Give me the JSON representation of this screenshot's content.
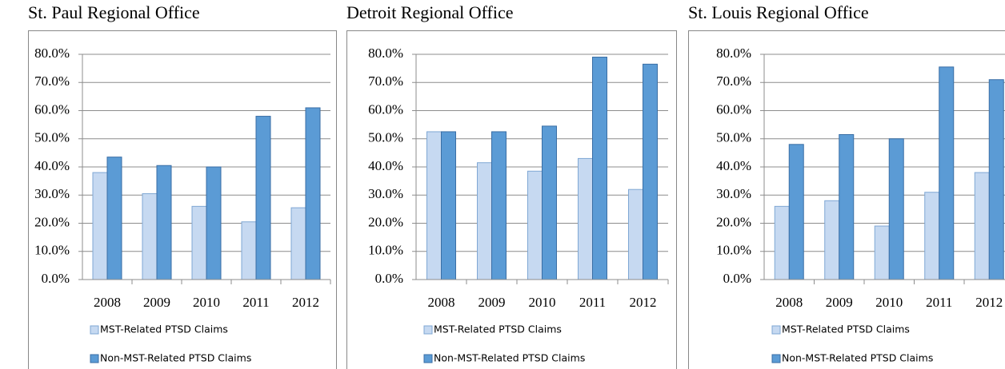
{
  "chart_data": [
    {
      "type": "bar",
      "title": "St. Paul Regional Office",
      "categories": [
        "2008",
        "2009",
        "2010",
        "2011",
        "2012"
      ],
      "series": [
        {
          "name": "MST-Related PTSD Claims",
          "color": "#c6d9f1",
          "values": [
            38,
            30.5,
            26,
            20.5,
            25.5
          ]
        },
        {
          "name": "Non-MST-Related PTSD Claims",
          "color": "#5b9bd5",
          "values": [
            43.5,
            40.5,
            40,
            58,
            61
          ]
        }
      ],
      "ylim": [
        0,
        80
      ],
      "yticks": [
        {
          "value": 0,
          "label": "0.0%"
        },
        {
          "value": 10,
          "label": "10.0%"
        },
        {
          "value": 20,
          "label": "20.0%"
        },
        {
          "value": 30,
          "label": "30.0%"
        },
        {
          "value": 40,
          "label": "40.0%"
        },
        {
          "value": 50,
          "label": "50.0%"
        },
        {
          "value": 60,
          "label": "60.0%"
        },
        {
          "value": 70,
          "label": "70.0%"
        },
        {
          "value": 80,
          "label": "80.0%"
        }
      ],
      "grid": true
    },
    {
      "type": "bar",
      "title": "Detroit Regional Office",
      "categories": [
        "2008",
        "2009",
        "2010",
        "2011",
        "2012"
      ],
      "series": [
        {
          "name": "MST-Related PTSD Claims",
          "color": "#c6d9f1",
          "values": [
            52.5,
            41.5,
            38.5,
            43,
            32
          ]
        },
        {
          "name": "Non-MST-Related PTSD Claims",
          "color": "#5b9bd5",
          "values": [
            52.5,
            52.5,
            54.5,
            79,
            76.5
          ]
        }
      ],
      "ylim": [
        0,
        80
      ],
      "yticks": [
        {
          "value": 0,
          "label": "0.0%"
        },
        {
          "value": 10,
          "label": "10.0%"
        },
        {
          "value": 20,
          "label": "20.0%"
        },
        {
          "value": 30,
          "label": "30.0%"
        },
        {
          "value": 40,
          "label": "40.0%"
        },
        {
          "value": 50,
          "label": "50.0%"
        },
        {
          "value": 60,
          "label": "60.0%"
        },
        {
          "value": 70,
          "label": "70.0%"
        },
        {
          "value": 80,
          "label": "80.0%"
        }
      ],
      "grid": true
    },
    {
      "type": "bar",
      "title": "St. Louis Regional Office",
      "categories": [
        "2008",
        "2009",
        "2010",
        "2011",
        "2012"
      ],
      "series": [
        {
          "name": "MST-Related PTSD Claims",
          "color": "#c6d9f1",
          "values": [
            26,
            28,
            19,
            31,
            38
          ]
        },
        {
          "name": "Non-MST-Related PTSD Claims",
          "color": "#5b9bd5",
          "values": [
            48,
            51.5,
            50,
            75.5,
            71
          ]
        }
      ],
      "ylim": [
        0,
        80
      ],
      "yticks": [
        {
          "value": 0,
          "label": "0.0%"
        },
        {
          "value": 10,
          "label": "10.0%"
        },
        {
          "value": 20,
          "label": "20.0%"
        },
        {
          "value": 30,
          "label": "30.0%"
        },
        {
          "value": 40,
          "label": "40.0%"
        },
        {
          "value": 50,
          "label": "50.0%"
        },
        {
          "value": 60,
          "label": "60.0%"
        },
        {
          "value": 70,
          "label": "70.0%"
        },
        {
          "value": 80,
          "label": "80.0%"
        }
      ],
      "grid": true
    }
  ]
}
